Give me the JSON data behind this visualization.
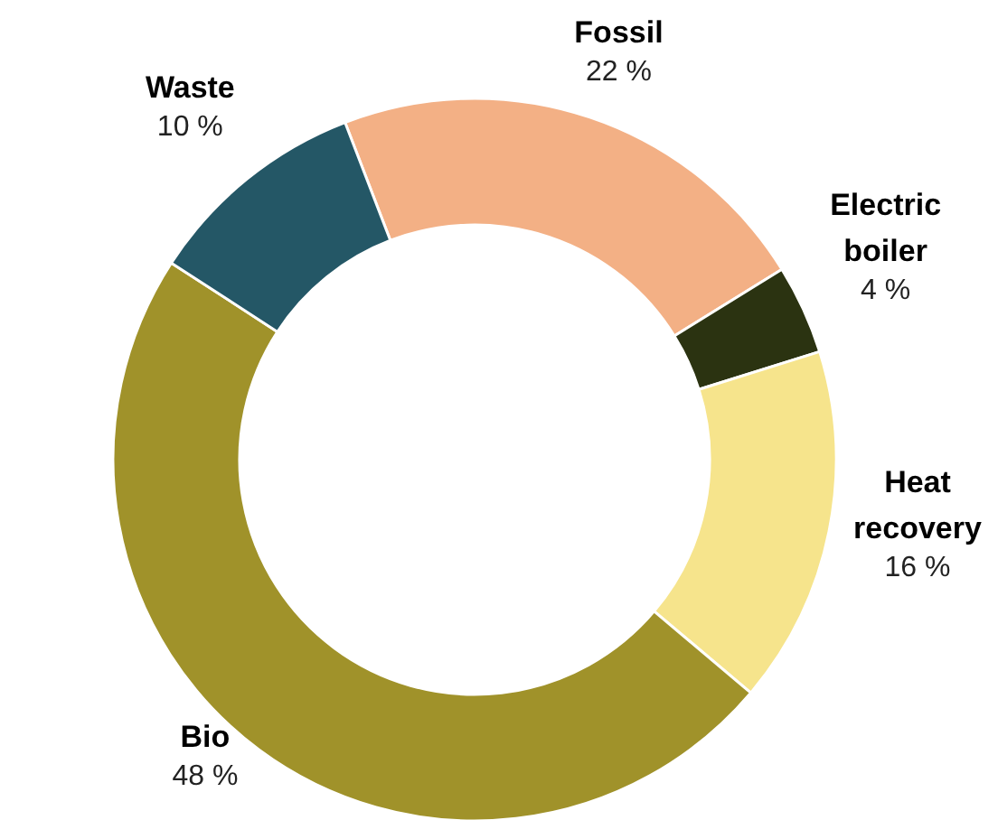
{
  "chart_data": {
    "type": "donut",
    "categories": [
      "Fossil",
      "Electric boiler",
      "Heat recovery",
      "Bio",
      "Waste"
    ],
    "values": [
      22,
      4,
      16,
      48,
      10
    ],
    "value_labels": [
      "22 %",
      "4 %",
      "16 %",
      "48 %",
      "10 %"
    ],
    "colors": [
      "#f3b085",
      "#2b3311",
      "#f6e48c",
      "#a0922a",
      "#245766"
    ]
  }
}
